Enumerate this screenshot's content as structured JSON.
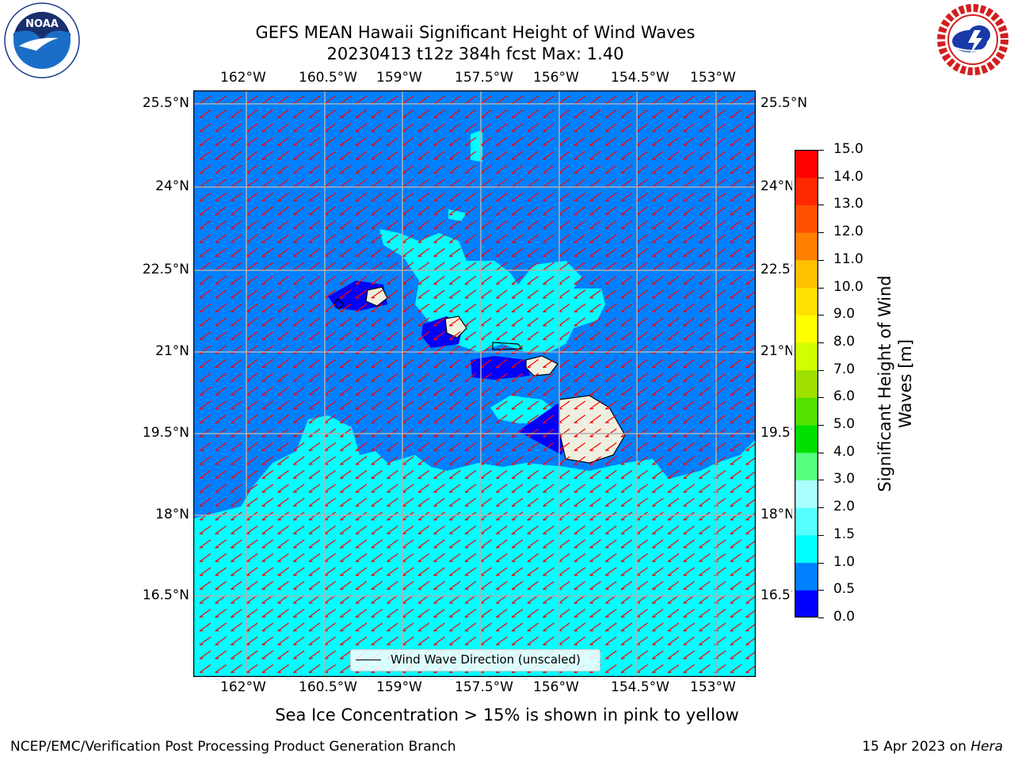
{
  "title": {
    "line1": "GEFS MEAN Hawaii Significant Height of Wind Waves",
    "line2": "20230413 t12z 384h fcst   Max: 1.40"
  },
  "map": {
    "lon_ticks": [
      "162°W",
      "160.5°W",
      "159°W",
      "157.5°W",
      "156°W",
      "154.5°W",
      "153°W"
    ],
    "lat_ticks": [
      "25.5°N",
      "24°N",
      "22.5°N",
      "21°N",
      "19.5°N",
      "18°N",
      "16.5°N"
    ],
    "lon_range": [
      -163,
      -152.25
    ],
    "lat_range": [
      15.15,
      25.75
    ],
    "legend_label": "Wind Wave Direction (unscaled)"
  },
  "colorbar": {
    "label": "Significant Height of Wind Waves [m]",
    "ticks": [
      "15.0",
      "14.0",
      "13.0",
      "12.0",
      "11.0",
      "10.0",
      "9.0",
      "8.0",
      "7.0",
      "6.0",
      "5.0",
      "4.0",
      "3.0",
      "2.0",
      "1.5",
      "1.0",
      "0.5",
      "0.0"
    ],
    "bounds": [
      0,
      0.5,
      1.0,
      1.5,
      2.0,
      3.0,
      4.0,
      5.0,
      6.0,
      7.0,
      8.0,
      9.0,
      10.0,
      11.0,
      12.0,
      13.0,
      14.0,
      15.0
    ],
    "colors": [
      "#0000ff",
      "#0080ff",
      "#00ffff",
      "#55ffff",
      "#aaffff",
      "#55ff80",
      "#00e000",
      "#55e000",
      "#a0e000",
      "#d0ff00",
      "#ffff00",
      "#ffe000",
      "#ffc000",
      "#ff8000",
      "#ff5000",
      "#ff2800",
      "#ff0000"
    ]
  },
  "field_colors": {
    "land": "#efefdf",
    "coast": "#000000",
    "arrows": "#ff0000",
    "grid": "#b0b0b0"
  },
  "note": "Sea Ice Concentration > 15% is shown in pink to yellow",
  "footer": {
    "left": "NCEP/EMC/Verification Post Processing Product Generation Branch",
    "right_prefix": "15 Apr 2023 on ",
    "right_host": "Hera"
  },
  "logos": {
    "noaa": "NOAA",
    "nws": "NATIONAL WEATHER SERVICE"
  }
}
